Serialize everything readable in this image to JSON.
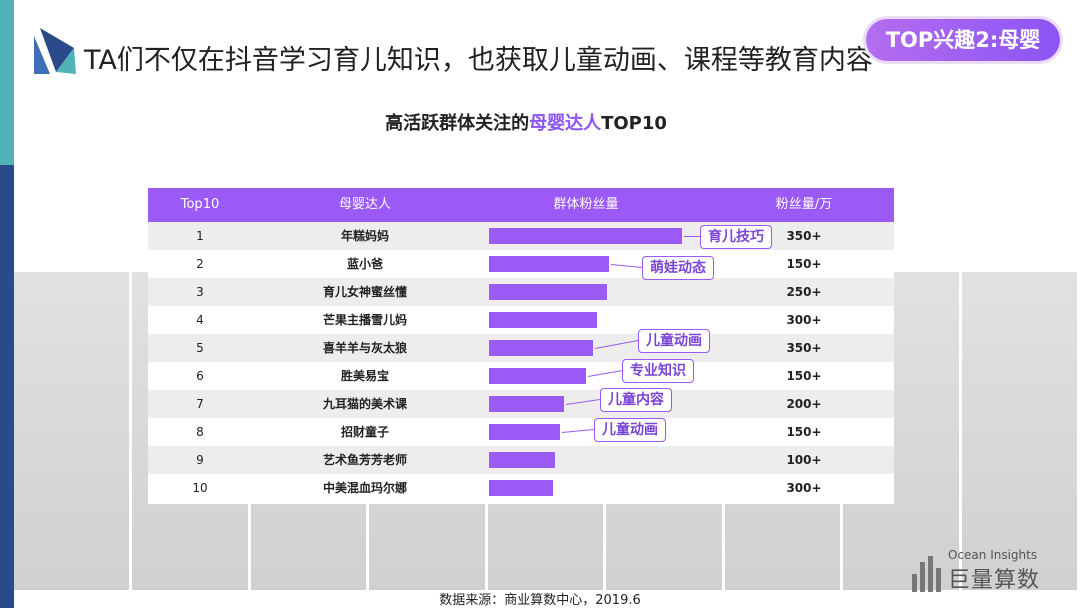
{
  "page_title": "TA们不仅在抖音学习育儿知识，也获取儿童动画、课程等教育内容",
  "tag_badge": "TOP兴趣2:母婴",
  "chart_title": {
    "prefix": "高活跃群体关注的",
    "highlight": "母婴达人",
    "suffix": "TOP10"
  },
  "source": "数据来源：商业算数中心，2019.6",
  "brand": {
    "en": "Ocean Insights",
    "cn": "巨量算数"
  },
  "colors": {
    "accent": "#9b59f5",
    "teal": "#4fb3b8",
    "navy": "#2b4a8a"
  },
  "chart_data": {
    "type": "table",
    "columns": [
      "Top10",
      "母婴达人",
      "群体粉丝量",
      "粉丝量/万"
    ],
    "rows": [
      {
        "rank": "1",
        "name": "年糕妈妈",
        "group_fans": 100,
        "fans": "350+"
      },
      {
        "rank": "2",
        "name": "蓝小爸",
        "group_fans": 62,
        "fans": "150+"
      },
      {
        "rank": "3",
        "name": "育儿女神蜜丝懂",
        "group_fans": 61,
        "fans": "250+"
      },
      {
        "rank": "4",
        "name": "芒果主播雪儿妈",
        "group_fans": 56,
        "fans": "300+"
      },
      {
        "rank": "5",
        "name": "喜羊羊与灰太狼",
        "group_fans": 54,
        "fans": "350+"
      },
      {
        "rank": "6",
        "name": "胜美易宝",
        "group_fans": 50,
        "fans": "150+"
      },
      {
        "rank": "7",
        "name": "九耳猫的美术课",
        "group_fans": 39,
        "fans": "200+"
      },
      {
        "rank": "8",
        "name": "招财童子",
        "group_fans": 37,
        "fans": "150+"
      },
      {
        "rank": "9",
        "name": "艺术鱼芳芳老师",
        "group_fans": 34,
        "fans": "100+"
      },
      {
        "rank": "10",
        "name": "中美混血玛尔娜",
        "group_fans": 33,
        "fans": "300+"
      }
    ],
    "annotations": [
      {
        "row": 1,
        "text": "育儿技巧"
      },
      {
        "row": 2,
        "text": "萌娃动态"
      },
      {
        "row": 5,
        "text": "儿童动画"
      },
      {
        "row": 6,
        "text": "专业知识"
      },
      {
        "row": 7,
        "text": "儿童内容"
      },
      {
        "row": 8,
        "text": "儿童动画"
      }
    ]
  }
}
